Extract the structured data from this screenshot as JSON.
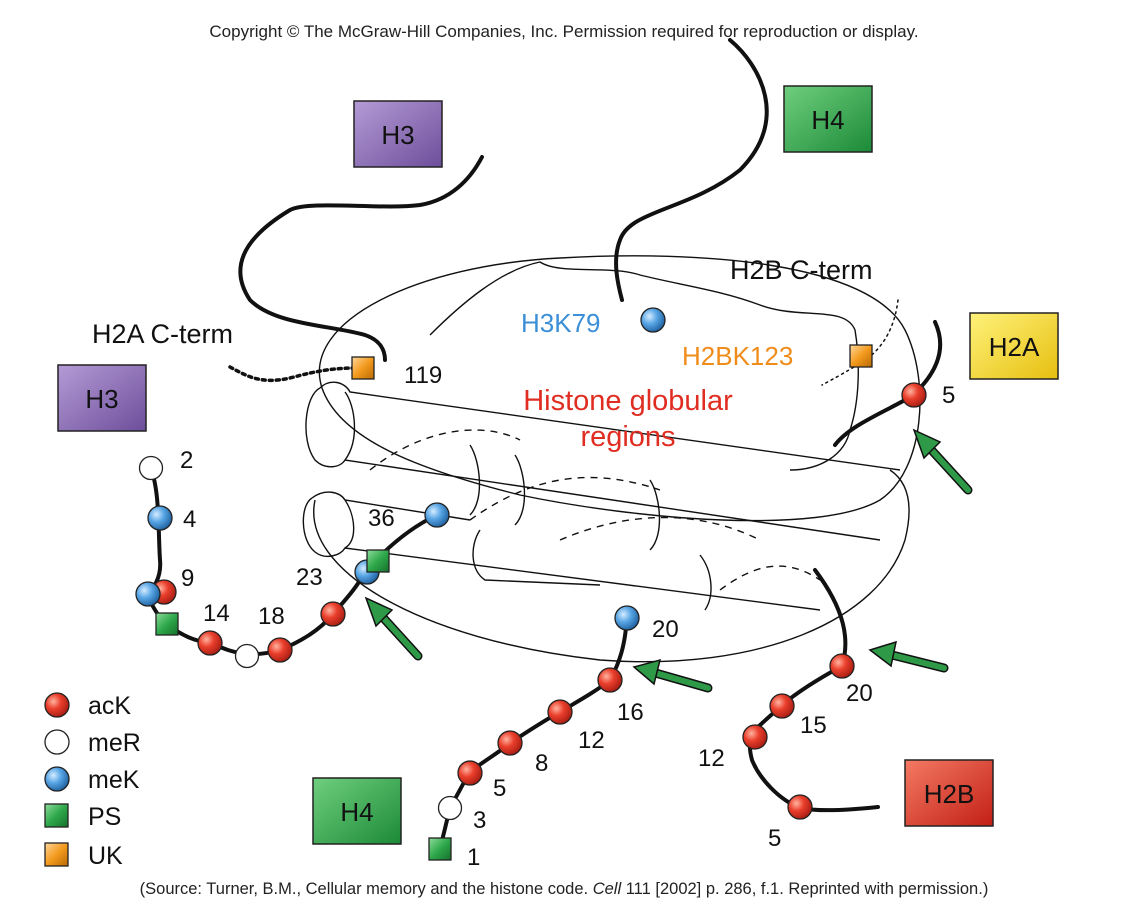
{
  "copyright": "Copyright © The McGraw-Hill Companies, Inc. Permission required for reproduction or display.",
  "source": {
    "prefix": "(Source: Turner, B.M., Cellular memory and the histone code. ",
    "journal": "Cell",
    "suffix": " 111 [2002] p. 286, f.1. Reprinted with permission.)"
  },
  "boxes": {
    "h3_top": "H3",
    "h4_top": "H4",
    "h2a": "H2A",
    "h3_left": "H3",
    "h4_bottom": "H4",
    "h2b": "H2B"
  },
  "labels": {
    "h2b_cterm": "H2B C-term",
    "h2a_cterm": "H2A C-term",
    "h3k79": "H3K79",
    "h2bk123": "H2BK123",
    "globular_line1": "Histone globular",
    "globular_line2": "regions",
    "num_119": "119"
  },
  "h3_tail_numbers": [
    "2",
    "4",
    "9",
    "14",
    "18",
    "23",
    "36"
  ],
  "h4_tail_numbers": [
    "1",
    "3",
    "5",
    "8",
    "12",
    "16",
    "20"
  ],
  "h2b_tail_numbers": [
    "5",
    "12",
    "15",
    "20"
  ],
  "h2a_tail_numbers": [
    "5"
  ],
  "legend": [
    {
      "shape": "circle",
      "color": "#e23a2a",
      "label": "acK"
    },
    {
      "shape": "circle",
      "color": "#ffffff",
      "label": "meR"
    },
    {
      "shape": "circle",
      "color": "#4a9ee0",
      "label": "meK"
    },
    {
      "shape": "square",
      "color": "#2ea84a",
      "label": "PS"
    },
    {
      "shape": "square",
      "color": "#f39a1d",
      "label": "UK"
    }
  ],
  "colors": {
    "h3_box": "#8f70b8",
    "h4_box": "#2ea84a",
    "h2a_box": "#f7dc2a",
    "h2b_box": "#e8362b",
    "acK": "#e23a2a",
    "meK": "#4a9ee0",
    "PS": "#2ea84a",
    "UK": "#f39a1d",
    "label_blue": "#3b8fd6",
    "label_orange": "#f08c1a",
    "label_red": "#e02d22",
    "arrow_green": "#2e9a47"
  }
}
